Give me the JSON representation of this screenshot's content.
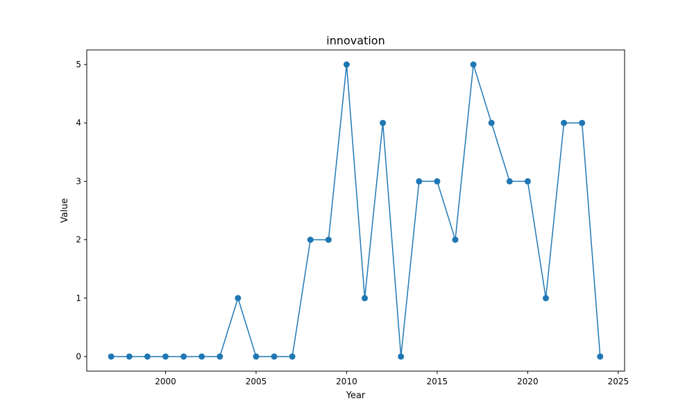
{
  "chart_data": {
    "type": "line",
    "title": "innovation",
    "xlabel": "Year",
    "ylabel": "Value",
    "xlim": [
      1995.65,
      2025.35
    ],
    "ylim": [
      -0.25,
      5.25
    ],
    "xticks": [
      2000,
      2005,
      2010,
      2015,
      2020,
      2025
    ],
    "yticks": [
      0,
      1,
      2,
      3,
      4,
      5
    ],
    "grid": false,
    "series": [
      {
        "name": "",
        "color": "#1f77b4",
        "marker": "circle",
        "x": [
          1997,
          1998,
          1999,
          2000,
          2001,
          2002,
          2003,
          2004,
          2005,
          2006,
          2007,
          2008,
          2009,
          2010,
          2011,
          2012,
          2013,
          2014,
          2015,
          2016,
          2017,
          2018,
          2019,
          2020,
          2021,
          2022,
          2023,
          2024
        ],
        "y": [
          0,
          0,
          0,
          0,
          0,
          0,
          0,
          1,
          0,
          0,
          0,
          2,
          2,
          5,
          1,
          4,
          0,
          3,
          3,
          2,
          5,
          4,
          3,
          3,
          1,
          4,
          4,
          0
        ]
      }
    ]
  }
}
